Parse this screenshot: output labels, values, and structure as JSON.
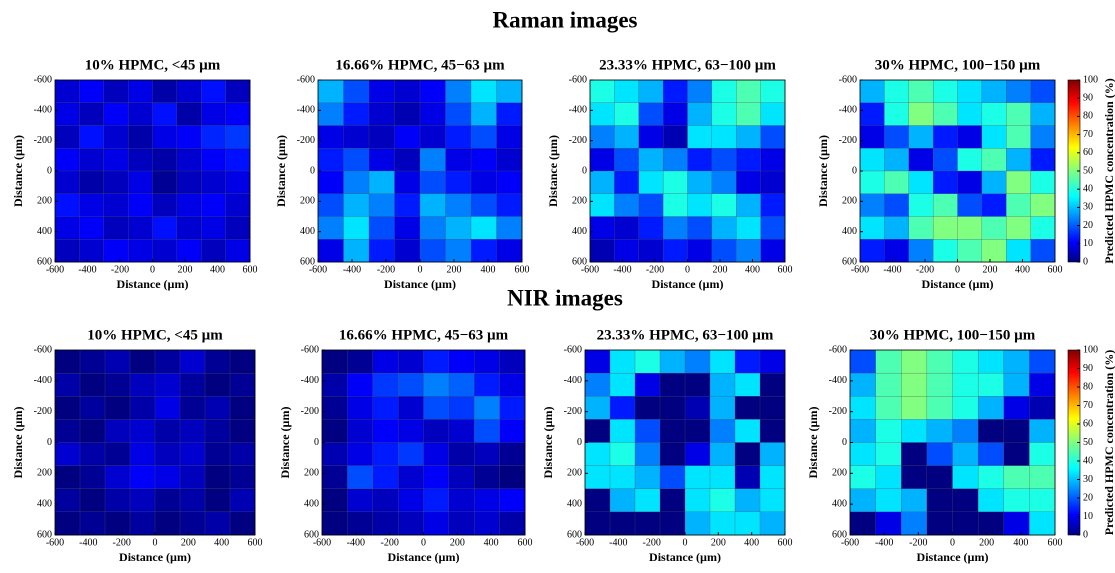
{
  "section_titles": [
    "Raman images",
    "NIR images"
  ],
  "chart_data": [
    {
      "type": "heatmap",
      "title": "10% HPMC, <45 µm",
      "xlabel": "Distance (µm)",
      "ylabel": "Distance (µm)",
      "xlim": [
        -600,
        600
      ],
      "ylim": [
        -600,
        600
      ],
      "xticks": [
        -600,
        -400,
        -200,
        0,
        200,
        400,
        600
      ],
      "yticks": [
        -600,
        -400,
        -200,
        0,
        200,
        400,
        600
      ],
      "zlim": [
        0,
        100
      ],
      "colormap": "jet",
      "values": [
        [
          8,
          12,
          6,
          10,
          4,
          8,
          14,
          6
        ],
        [
          10,
          6,
          12,
          8,
          14,
          4,
          10,
          12
        ],
        [
          6,
          14,
          8,
          4,
          10,
          12,
          16,
          18
        ],
        [
          12,
          8,
          10,
          6,
          4,
          8,
          12,
          14
        ],
        [
          8,
          4,
          6,
          10,
          2,
          6,
          8,
          10
        ],
        [
          14,
          10,
          8,
          12,
          6,
          10,
          12,
          8
        ],
        [
          10,
          12,
          6,
          8,
          14,
          8,
          10,
          6
        ],
        [
          6,
          8,
          12,
          10,
          8,
          12,
          6,
          10
        ]
      ]
    },
    {
      "type": "heatmap",
      "title": "16.66% HPMC, 45−63 µm",
      "xlabel": "Distance (µm)",
      "ylabel": "Distance (µm)",
      "xlim": [
        -600,
        600
      ],
      "ylim": [
        -600,
        600
      ],
      "xticks": [
        -600,
        -400,
        -200,
        0,
        200,
        400,
        600
      ],
      "yticks": [
        -600,
        -400,
        -200,
        0,
        200,
        400,
        600
      ],
      "zlim": [
        0,
        100
      ],
      "colormap": "jet",
      "values": [
        [
          30,
          20,
          10,
          8,
          12,
          25,
          35,
          30
        ],
        [
          25,
          15,
          8,
          5,
          10,
          20,
          30,
          15
        ],
        [
          10,
          8,
          6,
          12,
          8,
          15,
          20,
          10
        ],
        [
          15,
          20,
          10,
          6,
          25,
          10,
          12,
          8
        ],
        [
          12,
          25,
          30,
          10,
          20,
          15,
          10,
          12
        ],
        [
          20,
          30,
          25,
          15,
          30,
          25,
          20,
          15
        ],
        [
          25,
          35,
          20,
          10,
          25,
          30,
          35,
          25
        ],
        [
          10,
          30,
          15,
          8,
          20,
          25,
          15,
          10
        ]
      ]
    },
    {
      "type": "heatmap",
      "title": "23.33% HPMC, 63−100 µm",
      "xlabel": "Distance (µm)",
      "ylabel": "Distance (µm)",
      "xlim": [
        -600,
        600
      ],
      "ylim": [
        -600,
        600
      ],
      "xticks": [
        -600,
        -400,
        -200,
        0,
        200,
        400,
        600
      ],
      "yticks": [
        -600,
        -400,
        -200,
        0,
        200,
        400,
        600
      ],
      "zlim": [
        0,
        100
      ],
      "colormap": "jet",
      "values": [
        [
          40,
          35,
          30,
          15,
          25,
          40,
          45,
          40
        ],
        [
          35,
          40,
          20,
          10,
          30,
          40,
          45,
          35
        ],
        [
          25,
          30,
          10,
          5,
          35,
          35,
          30,
          20
        ],
        [
          10,
          20,
          30,
          25,
          15,
          20,
          15,
          10
        ],
        [
          30,
          15,
          35,
          40,
          30,
          25,
          10,
          8
        ],
        [
          35,
          25,
          20,
          40,
          35,
          40,
          30,
          15
        ],
        [
          10,
          8,
          15,
          25,
          20,
          30,
          35,
          20
        ],
        [
          5,
          10,
          8,
          15,
          10,
          20,
          25,
          10
        ]
      ]
    },
    {
      "type": "heatmap",
      "title": "30% HPMC, 100−150 µm",
      "xlabel": "Distance (µm)",
      "ylabel": "Distance (µm)",
      "xlim": [
        -600,
        600
      ],
      "ylim": [
        -600,
        600
      ],
      "xticks": [
        -600,
        -400,
        -200,
        0,
        200,
        400,
        600
      ],
      "yticks": [
        -600,
        -400,
        -200,
        0,
        200,
        400,
        600
      ],
      "zlim": [
        0,
        100
      ],
      "colormap": "jet",
      "values": [
        [
          30,
          40,
          45,
          40,
          35,
          30,
          25,
          20
        ],
        [
          15,
          40,
          50,
          45,
          35,
          40,
          45,
          30
        ],
        [
          10,
          20,
          30,
          15,
          10,
          35,
          45,
          25
        ],
        [
          35,
          30,
          10,
          20,
          40,
          45,
          30,
          15
        ],
        [
          40,
          45,
          35,
          15,
          10,
          30,
          50,
          40
        ],
        [
          25,
          20,
          40,
          45,
          20,
          15,
          45,
          50
        ],
        [
          35,
          30,
          45,
          50,
          50,
          45,
          50,
          40
        ],
        [
          15,
          10,
          25,
          40,
          45,
          50,
          35,
          20
        ]
      ],
      "colorbar": {
        "label": "Predicted HPMC concentration (%)",
        "lim": [
          0,
          100
        ],
        "ticks": [
          0,
          10,
          20,
          30,
          40,
          50,
          60,
          70,
          80,
          90,
          100
        ]
      }
    },
    {
      "type": "heatmap",
      "title": "10% HPMC, <45 µm",
      "xlabel": "Distance (µm)",
      "ylabel": "Distance (µm)",
      "xlim": [
        -600,
        600
      ],
      "ylim": [
        -600,
        600
      ],
      "xticks": [
        -600,
        -400,
        -200,
        0,
        200,
        400,
        600
      ],
      "yticks": [
        -600,
        -400,
        -200,
        0,
        200,
        400,
        600
      ],
      "zlim": [
        0,
        100
      ],
      "colormap": "jet",
      "values": [
        [
          0,
          2,
          5,
          0,
          3,
          8,
          2,
          0
        ],
        [
          4,
          0,
          2,
          6,
          8,
          3,
          0,
          2
        ],
        [
          0,
          3,
          0,
          4,
          10,
          2,
          5,
          0
        ],
        [
          2,
          0,
          6,
          8,
          4,
          6,
          3,
          0
        ],
        [
          8,
          4,
          2,
          10,
          6,
          8,
          2,
          4
        ],
        [
          0,
          2,
          8,
          12,
          10,
          6,
          0,
          2
        ],
        [
          3,
          0,
          4,
          6,
          2,
          4,
          0,
          5
        ],
        [
          0,
          2,
          0,
          3,
          0,
          2,
          4,
          0
        ]
      ]
    },
    {
      "type": "heatmap",
      "title": "16.66% HPMC, 45−63 µm",
      "xlabel": "Distance (µm)",
      "ylabel": "Distance (µm)",
      "xlim": [
        -600,
        600
      ],
      "ylim": [
        -600,
        600
      ],
      "xticks": [
        -600,
        -400,
        -200,
        0,
        200,
        400,
        600
      ],
      "yticks": [
        -600,
        -400,
        -200,
        0,
        200,
        400,
        600
      ],
      "zlim": [
        0,
        100
      ],
      "colormap": "jet",
      "values": [
        [
          0,
          2,
          10,
          8,
          15,
          12,
          10,
          6
        ],
        [
          4,
          12,
          18,
          20,
          25,
          22,
          15,
          10
        ],
        [
          2,
          10,
          15,
          8,
          20,
          18,
          25,
          15
        ],
        [
          0,
          8,
          12,
          10,
          6,
          8,
          20,
          12
        ],
        [
          5,
          10,
          15,
          18,
          10,
          4,
          6,
          2
        ],
        [
          2,
          20,
          15,
          8,
          12,
          6,
          2,
          0
        ],
        [
          0,
          8,
          6,
          10,
          15,
          8,
          10,
          12
        ],
        [
          0,
          2,
          4,
          6,
          10,
          6,
          8,
          4
        ]
      ]
    },
    {
      "type": "heatmap",
      "title": "23.33% HPMC, 63−100 µm",
      "xlabel": "Distance (µm)",
      "ylabel": "Distance (µm)",
      "xlim": [
        -600,
        600
      ],
      "ylim": [
        -600,
        600
      ],
      "xticks": [
        -600,
        -400,
        -200,
        0,
        200,
        400,
        600
      ],
      "yticks": [
        -600,
        -400,
        -200,
        0,
        200,
        400,
        600
      ],
      "zlim": [
        0,
        100
      ],
      "colormap": "jet",
      "values": [
        [
          10,
          35,
          40,
          30,
          25,
          35,
          15,
          10
        ],
        [
          25,
          35,
          10,
          0,
          0,
          30,
          35,
          0
        ],
        [
          30,
          15,
          0,
          0,
          5,
          30,
          0,
          0
        ],
        [
          0,
          35,
          20,
          0,
          0,
          25,
          35,
          0
        ],
        [
          35,
          40,
          25,
          0,
          10,
          30,
          0,
          30
        ],
        [
          35,
          35,
          30,
          20,
          35,
          35,
          5,
          35
        ],
        [
          0,
          30,
          35,
          0,
          35,
          40,
          30,
          35
        ],
        [
          0,
          0,
          0,
          0,
          30,
          35,
          35,
          30
        ]
      ]
    },
    {
      "type": "heatmap",
      "title": "30% HPMC, 100−150 µm",
      "xlabel": "Distance (µm)",
      "ylabel": "Distance (µm)",
      "xlim": [
        -600,
        600
      ],
      "ylim": [
        -600,
        600
      ],
      "xticks": [
        -600,
        -400,
        -200,
        0,
        200,
        400,
        600
      ],
      "yticks": [
        -600,
        -400,
        -200,
        0,
        200,
        400,
        600
      ],
      "zlim": [
        0,
        100
      ],
      "colormap": "jet",
      "values": [
        [
          20,
          45,
          50,
          45,
          40,
          35,
          30,
          20
        ],
        [
          30,
          45,
          50,
          45,
          40,
          40,
          30,
          10
        ],
        [
          35,
          45,
          50,
          45,
          40,
          30,
          10,
          5
        ],
        [
          30,
          40,
          35,
          30,
          25,
          0,
          0,
          30
        ],
        [
          35,
          40,
          0,
          20,
          30,
          20,
          0,
          40
        ],
        [
          40,
          35,
          0,
          0,
          35,
          40,
          45,
          45
        ],
        [
          30,
          35,
          30,
          0,
          0,
          35,
          40,
          40
        ],
        [
          0,
          10,
          25,
          0,
          0,
          0,
          10,
          35
        ]
      ],
      "colorbar": {
        "label": "Predicted HPMC concentration (%)",
        "lim": [
          0,
          100
        ],
        "ticks": [
          0,
          10,
          20,
          30,
          40,
          50,
          60,
          70,
          80,
          90,
          100
        ]
      }
    }
  ]
}
